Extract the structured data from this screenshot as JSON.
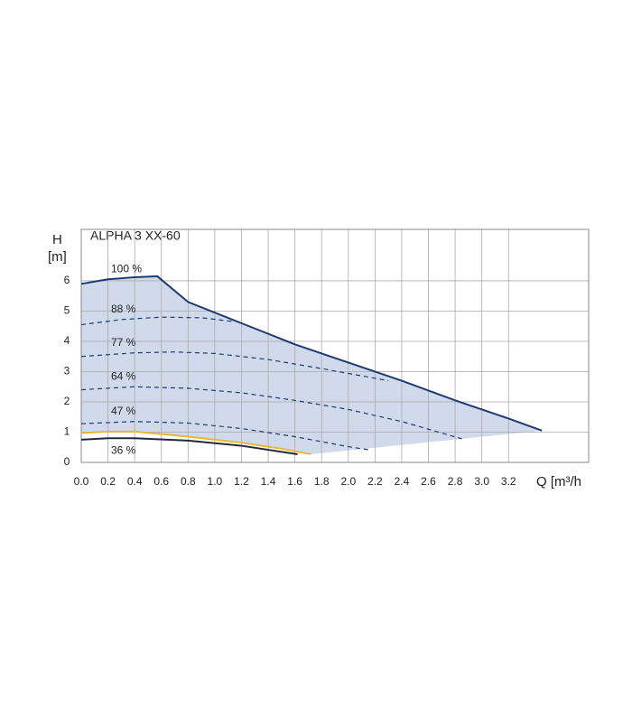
{
  "chart_data": {
    "type": "line",
    "title": "ALPHA 3 XX-60",
    "y_label_top": "H",
    "y_label_unit": "[m]",
    "x_label": "Q [m³/h",
    "xlim": [
      0,
      3.8
    ],
    "ylim": [
      0,
      7.7
    ],
    "xticks": [
      {
        "value": 0,
        "label": "0.0"
      },
      {
        "value": 0.2,
        "label": "0.2"
      },
      {
        "value": 0.4,
        "label": "0.4"
      },
      {
        "value": 0.6,
        "label": "0.6"
      },
      {
        "value": 0.8,
        "label": "0.8"
      },
      {
        "value": 1,
        "label": "1.0"
      },
      {
        "value": 1.2,
        "label": "1.2"
      },
      {
        "value": 1.4,
        "label": "1.4"
      },
      {
        "value": 1.6,
        "label": "1.6"
      },
      {
        "value": 1.8,
        "label": "1.8"
      },
      {
        "value": 2,
        "label": "2.0"
      },
      {
        "value": 2.2,
        "label": "2.2"
      },
      {
        "value": 2.4,
        "label": "2.4"
      },
      {
        "value": 2.6,
        "label": "2.6"
      },
      {
        "value": 2.8,
        "label": "2.8"
      },
      {
        "value": 3,
        "label": "3.0"
      },
      {
        "value": 3.2,
        "label": "3.2"
      }
    ],
    "yticks": [
      0,
      1,
      2,
      3,
      4,
      5,
      6
    ],
    "grid": true,
    "area_color": "#c9d3e6",
    "series": [
      {
        "name": "100 %",
        "color": "#1f3a73",
        "dashed": false,
        "x": [
          0,
          0.2,
          0.4,
          0.57,
          0.8,
          1.2,
          1.6,
          2.0,
          2.4,
          2.8,
          3.2,
          3.45
        ],
        "values": [
          5.9,
          6.05,
          6.12,
          6.15,
          5.3,
          4.6,
          3.9,
          3.3,
          2.7,
          2.05,
          1.45,
          1.05
        ]
      },
      {
        "name": "88 %",
        "color": "#1f3a73",
        "dashed": true,
        "x": [
          0,
          0.3,
          0.6,
          0.9,
          1.15
        ],
        "values": [
          4.55,
          4.72,
          4.8,
          4.78,
          4.65
        ]
      },
      {
        "name": "77 %",
        "color": "#1f3a73",
        "dashed": true,
        "x": [
          0,
          0.4,
          0.7,
          1.0,
          1.4,
          1.8,
          2.3
        ],
        "values": [
          3.5,
          3.62,
          3.65,
          3.6,
          3.4,
          3.1,
          2.7
        ]
      },
      {
        "name": "64 %",
        "color": "#1f3a73",
        "dashed": true,
        "x": [
          0,
          0.4,
          0.8,
          1.2,
          1.6,
          2.0,
          2.4,
          2.85
        ],
        "values": [
          2.4,
          2.5,
          2.45,
          2.3,
          2.05,
          1.75,
          1.35,
          0.78
        ]
      },
      {
        "name": "47 %",
        "color": "#1f3a73",
        "dashed": true,
        "x": [
          0,
          0.4,
          0.8,
          1.2,
          1.6,
          2.0,
          2.15
        ],
        "values": [
          1.28,
          1.35,
          1.3,
          1.12,
          0.85,
          0.52,
          0.42
        ]
      },
      {
        "color": "#e8b83a",
        "dashed": false,
        "x": [
          0,
          0.2,
          0.4,
          0.8,
          1.2,
          1.5,
          1.72
        ],
        "values": [
          0.97,
          1.02,
          1.02,
          0.85,
          0.65,
          0.45,
          0.27
        ]
      },
      {
        "name": "36 %",
        "color": "#222a3a",
        "dashed": false,
        "x": [
          0,
          0.2,
          0.4,
          0.8,
          1.2,
          1.62
        ],
        "values": [
          0.75,
          0.8,
          0.8,
          0.72,
          0.55,
          0.27
        ]
      }
    ]
  }
}
